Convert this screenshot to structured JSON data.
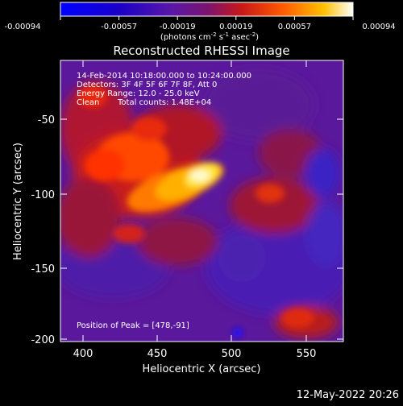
{
  "colorbar": {
    "ticks": [
      "-0.00094",
      "-0.00057",
      "-0.00019",
      "0.00019",
      "0.00057",
      "0.00094"
    ],
    "unit_main": "(photons cm",
    "unit_exp1": "-2",
    "unit_s": " s",
    "unit_exp2": "-1",
    "unit_asec": " asec",
    "unit_exp3": "-2",
    "unit_end": ")",
    "range": [
      -0.00094,
      0.00094
    ]
  },
  "info": {
    "line1": "14-Feb-2014 10:18:00.000 to 10:24:00.000",
    "line2": "Detectors: 3F 4F 5F 6F 7F 8F, Att 0",
    "line3": "Energy Range: 12.0 - 25.0 keV",
    "line4_a": "Clean",
    "line4_b": "Total counts: 1.48E+04",
    "peak": "Position of Peak = [478,-91]"
  },
  "footer_date": "12-May-2022 20:26",
  "chart_data": {
    "type": "heatmap",
    "title": "Reconstructed RHESSI Image",
    "xlabel": "Heliocentric X (arcsec)",
    "ylabel": "Heliocentric Y (arcsec)",
    "xlim": [
      385,
      575
    ],
    "ylim": [
      -203,
      -10
    ],
    "xticks": [
      400,
      450,
      500,
      550
    ],
    "xtick_labels": [
      "400",
      "450",
      "500",
      "550"
    ],
    "yticks": [
      -200,
      -150,
      -100,
      -50
    ],
    "ytick_labels": [
      "-200",
      "-150",
      "-100",
      "-50"
    ],
    "colorscale": "RHESSI std_gamma_ii (blue-purple-red-orange-yellow-white)",
    "peak": {
      "x": 478,
      "y": -91
    },
    "grid": false
  }
}
